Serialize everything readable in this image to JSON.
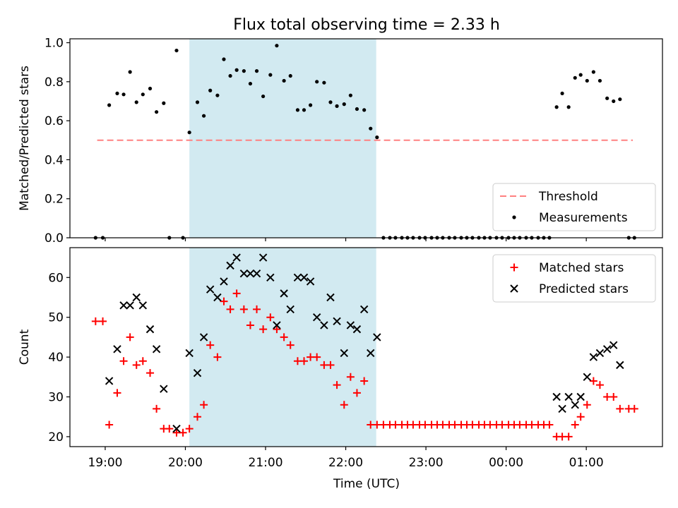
{
  "figure": {
    "title": "Flux total observing time = 2.33 h",
    "xlabel": "Time (UTC)",
    "xticks": [
      {
        "t": 19,
        "label": "19:00"
      },
      {
        "t": 20,
        "label": "20:00"
      },
      {
        "t": 21,
        "label": "21:00"
      },
      {
        "t": 22,
        "label": "22:00"
      },
      {
        "t": 23,
        "label": "23:00"
      },
      {
        "t": 24,
        "label": "00:00"
      },
      {
        "t": 25,
        "label": "01:00"
      }
    ],
    "xlim": [
      18.56,
      25.95
    ],
    "shaded_span": {
      "start": 20.05,
      "end": 22.38,
      "color": "#add8e6"
    }
  },
  "chart_data": [
    {
      "type": "scatter",
      "ylabel": "Matched/Predicted stars",
      "ylim": [
        0,
        1.02
      ],
      "yticks": [
        {
          "v": 0,
          "label": "0.0"
        },
        {
          "v": 0.2,
          "label": "0.2"
        },
        {
          "v": 0.4,
          "label": "0.4"
        },
        {
          "v": 0.6,
          "label": "0.6"
        },
        {
          "v": 0.8,
          "label": "0.8"
        },
        {
          "v": 1.0,
          "label": "1.0"
        }
      ],
      "legend_position": "lower-right",
      "threshold": {
        "name": "Threshold",
        "y": 0.5,
        "x_range": [
          18.9,
          25.58
        ],
        "color": "#ff8080"
      },
      "series": [
        {
          "name": "Measurements",
          "color": "#000000",
          "points": [
            [
              18.88,
              0
            ],
            [
              18.97,
              0
            ],
            [
              19.05,
              0.68
            ],
            [
              19.15,
              0.74
            ],
            [
              19.23,
              0.735
            ],
            [
              19.31,
              0.85
            ],
            [
              19.39,
              0.695
            ],
            [
              19.47,
              0.735
            ],
            [
              19.56,
              0.765
            ],
            [
              19.64,
              0.645
            ],
            [
              19.73,
              0.69
            ],
            [
              19.8,
              0
            ],
            [
              19.89,
              0.96
            ],
            [
              19.97,
              0
            ],
            [
              20.05,
              0.54
            ],
            [
              20.15,
              0.695
            ],
            [
              20.23,
              0.625
            ],
            [
              20.31,
              0.755
            ],
            [
              20.4,
              0.73
            ],
            [
              20.48,
              0.915
            ],
            [
              20.56,
              0.83
            ],
            [
              20.64,
              0.86
            ],
            [
              20.73,
              0.855
            ],
            [
              20.81,
              0.79
            ],
            [
              20.89,
              0.855
            ],
            [
              20.97,
              0.725
            ],
            [
              21.06,
              0.835
            ],
            [
              21.14,
              0.985
            ],
            [
              21.23,
              0.805
            ],
            [
              21.31,
              0.83
            ],
            [
              21.4,
              0.655
            ],
            [
              21.48,
              0.655
            ],
            [
              21.56,
              0.68
            ],
            [
              21.64,
              0.8
            ],
            [
              21.73,
              0.795
            ],
            [
              21.81,
              0.695
            ],
            [
              21.89,
              0.675
            ],
            [
              21.98,
              0.685
            ],
            [
              22.06,
              0.73
            ],
            [
              22.14,
              0.66
            ],
            [
              22.23,
              0.655
            ],
            [
              22.31,
              0.56
            ],
            [
              22.39,
              0.515
            ],
            [
              22.47,
              0
            ],
            [
              22.55,
              0
            ],
            [
              22.62,
              0
            ],
            [
              22.7,
              0
            ],
            [
              22.77,
              0
            ],
            [
              22.84,
              0
            ],
            [
              22.92,
              0
            ],
            [
              22.99,
              0
            ],
            [
              23.07,
              0
            ],
            [
              23.14,
              0
            ],
            [
              23.21,
              0
            ],
            [
              23.29,
              0
            ],
            [
              23.36,
              0
            ],
            [
              23.44,
              0
            ],
            [
              23.51,
              0
            ],
            [
              23.58,
              0
            ],
            [
              23.66,
              0
            ],
            [
              23.73,
              0
            ],
            [
              23.8,
              0
            ],
            [
              23.88,
              0
            ],
            [
              23.95,
              0
            ],
            [
              24.03,
              0
            ],
            [
              24.1,
              0
            ],
            [
              24.17,
              0
            ],
            [
              24.25,
              0
            ],
            [
              24.32,
              0
            ],
            [
              24.4,
              0
            ],
            [
              24.47,
              0
            ],
            [
              24.54,
              0
            ],
            [
              24.63,
              0.67
            ],
            [
              24.7,
              0.74
            ],
            [
              24.78,
              0.67
            ],
            [
              24.86,
              0.82
            ],
            [
              24.93,
              0.835
            ],
            [
              25.01,
              0.805
            ],
            [
              25.09,
              0.85
            ],
            [
              25.17,
              0.805
            ],
            [
              25.26,
              0.715
            ],
            [
              25.34,
              0.7
            ],
            [
              25.42,
              0.71
            ],
            [
              25.53,
              0
            ],
            [
              25.6,
              0
            ]
          ]
        }
      ]
    },
    {
      "type": "scatter",
      "ylabel": "Count",
      "ylim": [
        17.5,
        67.5
      ],
      "yticks": [
        {
          "v": 20,
          "label": "20"
        },
        {
          "v": 30,
          "label": "30"
        },
        {
          "v": 40,
          "label": "40"
        },
        {
          "v": 50,
          "label": "50"
        },
        {
          "v": 60,
          "label": "60"
        }
      ],
      "legend_position": "upper-right",
      "series": [
        {
          "name": "Matched stars",
          "marker": "plus",
          "color": "#ff0000",
          "points": [
            [
              18.88,
              49
            ],
            [
              18.97,
              49
            ],
            [
              19.05,
              23
            ],
            [
              19.15,
              31
            ],
            [
              19.23,
              39
            ],
            [
              19.31,
              45
            ],
            [
              19.39,
              38
            ],
            [
              19.47,
              39
            ],
            [
              19.56,
              36
            ],
            [
              19.64,
              27
            ],
            [
              19.73,
              22
            ],
            [
              19.8,
              22
            ],
            [
              19.89,
              21
            ],
            [
              19.97,
              21
            ],
            [
              20.05,
              22
            ],
            [
              20.15,
              25
            ],
            [
              20.23,
              28
            ],
            [
              20.31,
              43
            ],
            [
              20.4,
              40
            ],
            [
              20.48,
              54
            ],
            [
              20.56,
              52
            ],
            [
              20.64,
              56
            ],
            [
              20.73,
              52
            ],
            [
              20.81,
              48
            ],
            [
              20.89,
              52
            ],
            [
              20.97,
              47
            ],
            [
              21.06,
              50
            ],
            [
              21.14,
              47
            ],
            [
              21.23,
              45
            ],
            [
              21.31,
              43
            ],
            [
              21.4,
              39
            ],
            [
              21.48,
              39
            ],
            [
              21.56,
              40
            ],
            [
              21.64,
              40
            ],
            [
              21.73,
              38
            ],
            [
              21.81,
              38
            ],
            [
              21.89,
              33
            ],
            [
              21.98,
              28
            ],
            [
              22.06,
              35
            ],
            [
              22.14,
              31
            ],
            [
              22.23,
              34
            ],
            [
              22.31,
              23
            ],
            [
              22.39,
              23
            ],
            [
              22.47,
              23
            ],
            [
              22.55,
              23
            ],
            [
              22.62,
              23
            ],
            [
              22.7,
              23
            ],
            [
              22.77,
              23
            ],
            [
              22.84,
              23
            ],
            [
              22.92,
              23
            ],
            [
              22.99,
              23
            ],
            [
              23.07,
              23
            ],
            [
              23.14,
              23
            ],
            [
              23.21,
              23
            ],
            [
              23.29,
              23
            ],
            [
              23.36,
              23
            ],
            [
              23.44,
              23
            ],
            [
              23.51,
              23
            ],
            [
              23.58,
              23
            ],
            [
              23.66,
              23
            ],
            [
              23.73,
              23
            ],
            [
              23.8,
              23
            ],
            [
              23.88,
              23
            ],
            [
              23.95,
              23
            ],
            [
              24.03,
              23
            ],
            [
              24.1,
              23
            ],
            [
              24.17,
              23
            ],
            [
              24.25,
              23
            ],
            [
              24.32,
              23
            ],
            [
              24.4,
              23
            ],
            [
              24.47,
              23
            ],
            [
              24.54,
              23
            ],
            [
              24.63,
              20
            ],
            [
              24.7,
              20
            ],
            [
              24.78,
              20
            ],
            [
              24.86,
              23
            ],
            [
              24.93,
              25
            ],
            [
              25.01,
              28
            ],
            [
              25.09,
              34
            ],
            [
              25.17,
              33
            ],
            [
              25.26,
              30
            ],
            [
              25.34,
              30
            ],
            [
              25.42,
              27
            ],
            [
              25.53,
              27
            ],
            [
              25.6,
              27
            ]
          ]
        },
        {
          "name": "Predicted stars",
          "marker": "x",
          "color": "#000000",
          "points": [
            [
              19.05,
              34
            ],
            [
              19.15,
              42
            ],
            [
              19.23,
              53
            ],
            [
              19.31,
              53
            ],
            [
              19.39,
              55
            ],
            [
              19.47,
              53
            ],
            [
              19.56,
              47
            ],
            [
              19.64,
              42
            ],
            [
              19.73,
              32
            ],
            [
              19.89,
              22
            ],
            [
              20.05,
              41
            ],
            [
              20.15,
              36
            ],
            [
              20.23,
              45
            ],
            [
              20.31,
              57
            ],
            [
              20.4,
              55
            ],
            [
              20.48,
              59
            ],
            [
              20.56,
              63
            ],
            [
              20.64,
              65
            ],
            [
              20.73,
              61
            ],
            [
              20.81,
              61
            ],
            [
              20.89,
              61
            ],
            [
              20.97,
              65
            ],
            [
              21.06,
              60
            ],
            [
              21.14,
              48
            ],
            [
              21.23,
              56
            ],
            [
              21.31,
              52
            ],
            [
              21.4,
              60
            ],
            [
              21.48,
              60
            ],
            [
              21.56,
              59
            ],
            [
              21.64,
              50
            ],
            [
              21.73,
              48
            ],
            [
              21.81,
              55
            ],
            [
              21.89,
              49
            ],
            [
              21.98,
              41
            ],
            [
              22.06,
              48
            ],
            [
              22.14,
              47
            ],
            [
              22.23,
              52
            ],
            [
              22.31,
              41
            ],
            [
              22.39,
              45
            ],
            [
              24.63,
              30
            ],
            [
              24.7,
              27
            ],
            [
              24.78,
              30
            ],
            [
              24.86,
              28
            ],
            [
              24.93,
              30
            ],
            [
              25.01,
              35
            ],
            [
              25.09,
              40
            ],
            [
              25.17,
              41
            ],
            [
              25.26,
              42
            ],
            [
              25.34,
              43
            ],
            [
              25.42,
              38
            ]
          ]
        }
      ]
    }
  ]
}
